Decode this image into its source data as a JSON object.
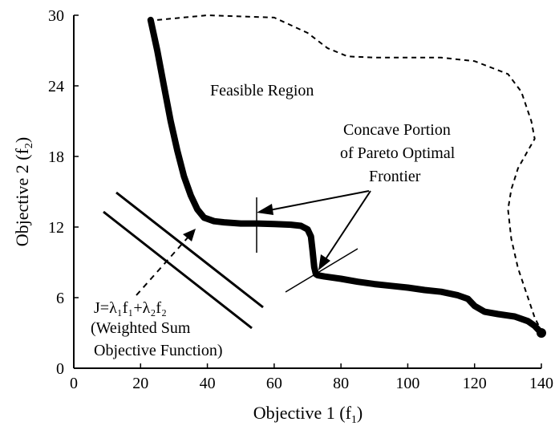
{
  "chart_data": {
    "type": "line",
    "title": "",
    "xlabel": "Objective 1 (f",
    "xlabel_sub": "1",
    "xlabel_end": ")",
    "ylabel": "Objective 2 (f",
    "ylabel_sub": "2",
    "ylabel_end": ")",
    "xlim": [
      0,
      140
    ],
    "ylim": [
      0,
      30
    ],
    "xticks": [
      0,
      20,
      40,
      60,
      80,
      100,
      120,
      140
    ],
    "yticks": [
      0,
      6,
      12,
      18,
      24,
      30
    ],
    "grid": false,
    "series": [
      {
        "style": "thick-solid",
        "x": [
          23,
          25,
          27,
          29,
          31,
          33,
          35,
          37,
          39,
          42,
          45,
          50,
          55,
          60,
          65,
          68,
          70,
          71,
          71.5,
          72,
          72.5,
          73,
          75,
          80,
          85,
          90,
          95,
          100,
          105,
          110,
          115,
          118,
          120,
          123,
          127,
          132,
          136,
          138,
          140
        ],
        "y": [
          29.6,
          27.0,
          24.0,
          21.0,
          18.5,
          16.3,
          14.7,
          13.5,
          12.8,
          12.5,
          12.4,
          12.3,
          12.3,
          12.25,
          12.2,
          12.1,
          11.8,
          11.2,
          10.0,
          8.6,
          8.0,
          7.9,
          7.8,
          7.6,
          7.35,
          7.15,
          7.0,
          6.85,
          6.65,
          6.5,
          6.2,
          5.9,
          5.3,
          4.8,
          4.6,
          4.4,
          4.0,
          3.6,
          3.0
        ]
      },
      {
        "style": "dashed",
        "x": [
          25,
          40,
          60,
          70,
          76,
          82,
          90,
          100,
          110,
          120,
          130,
          134,
          137,
          138,
          136,
          133,
          131,
          130,
          131,
          133,
          136,
          138,
          140
        ],
        "y": [
          29.6,
          30.0,
          29.8,
          28.5,
          27.2,
          26.5,
          26.4,
          26.4,
          26.4,
          26.1,
          25.0,
          23.5,
          21.0,
          19.5,
          18.5,
          17.0,
          15.2,
          13.5,
          11.0,
          8.5,
          6.0,
          4.3,
          3.2
        ]
      }
    ],
    "annotations": {
      "feasible": "Feasible Region",
      "concave_lines": [
        "Concave Portion",
        "of Pareto Optimal",
        "Frontier"
      ],
      "objective_formula": "J=λ₁f₁+λ₂f₂",
      "objective_desc_lines": [
        "(Weighted Sum",
        "Objective Function)"
      ]
    }
  }
}
